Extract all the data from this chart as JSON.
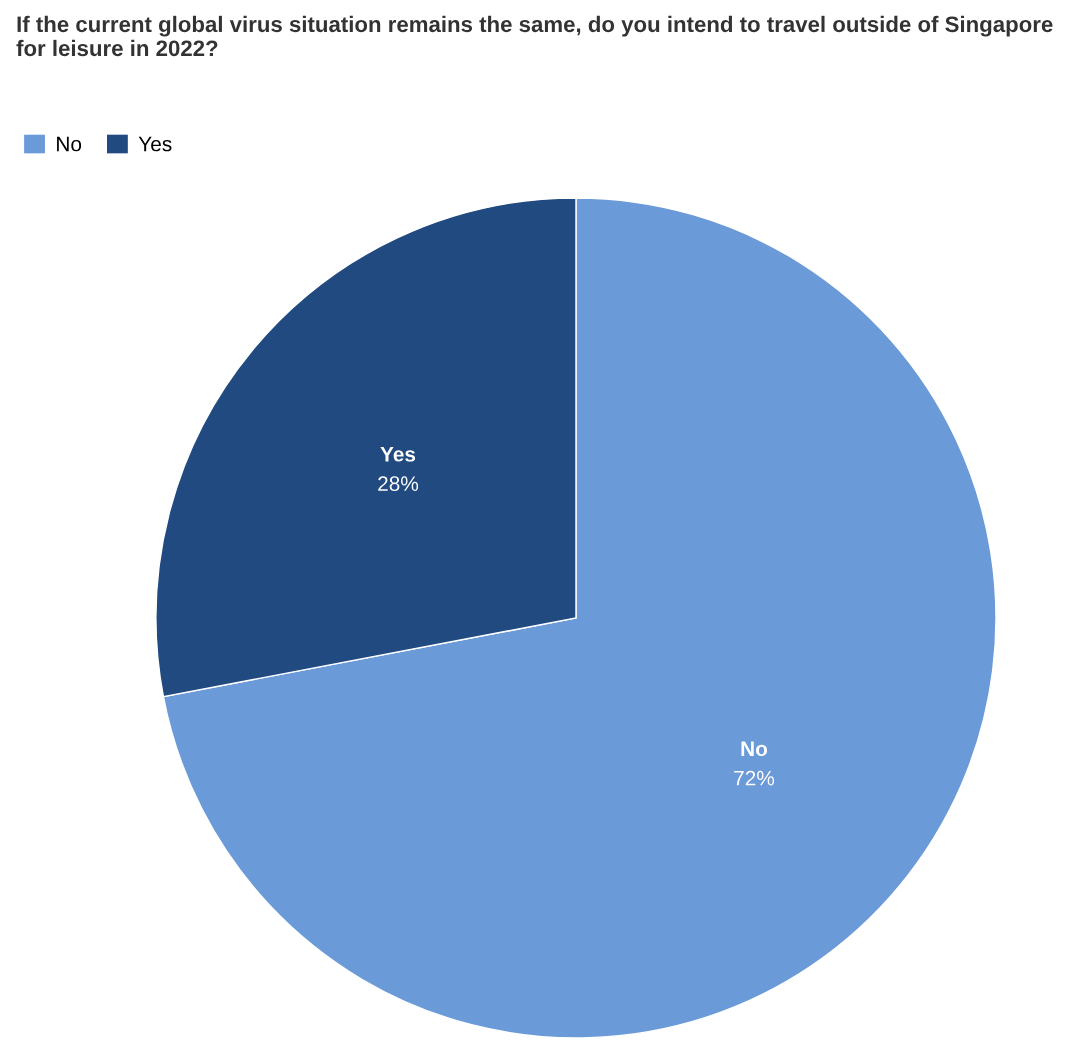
{
  "chart_data": {
    "type": "pie",
    "title": "If the current global virus situation remains the same, do you intend to travel outside of Singapore for leisure in 2022?",
    "categories": [
      "No",
      "Yes"
    ],
    "values": [
      72,
      28
    ],
    "colors": [
      "#6b9ad8",
      "#214a80"
    ],
    "value_labels": [
      "72%",
      "28%"
    ],
    "legend": "top left"
  }
}
